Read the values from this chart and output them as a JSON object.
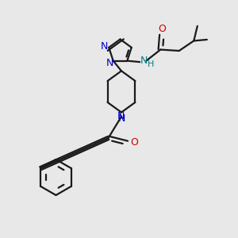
{
  "bg_color": "#e8e8e8",
  "bond_color": "#1a1a1a",
  "N_color": "#0000cc",
  "O_color": "#cc0000",
  "NH_color": "#008080",
  "figsize": [
    3.0,
    3.0
  ],
  "dpi": 100,
  "xlim": [
    0,
    10
  ],
  "ylim": [
    0,
    10
  ]
}
